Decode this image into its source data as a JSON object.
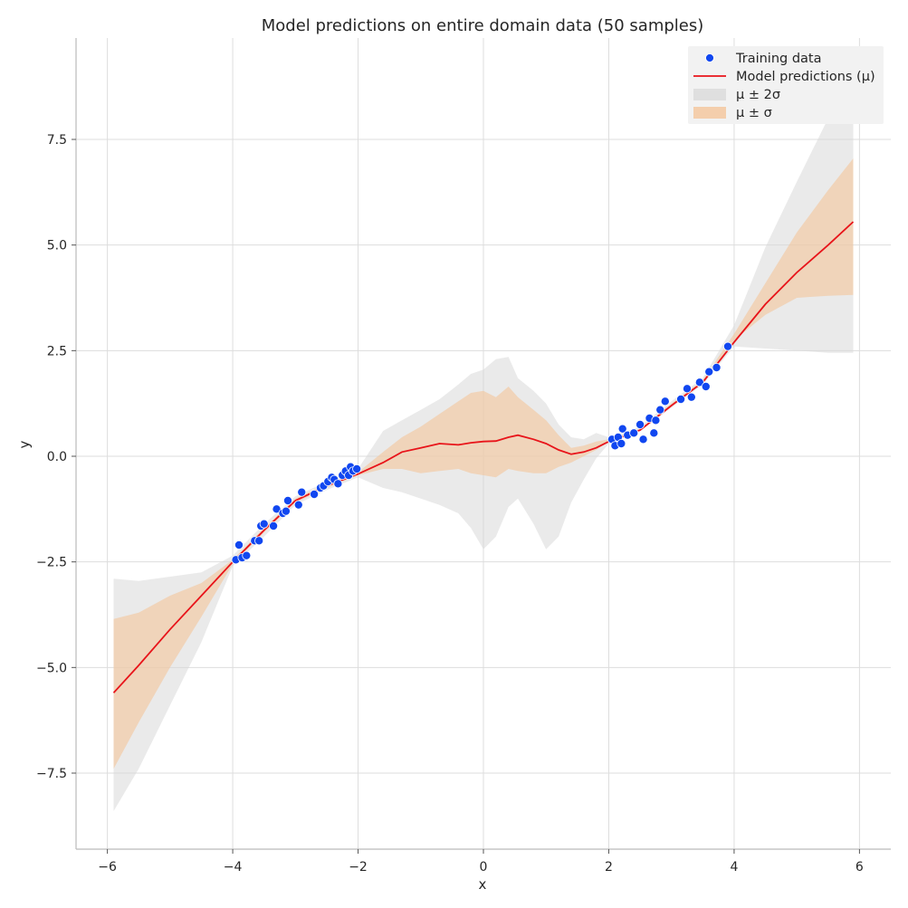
{
  "chart_data": {
    "type": "line",
    "title": "Model predictions on entire domain data (50 samples)",
    "xlabel": "x",
    "ylabel": "y",
    "xlim": [
      -6.5,
      6.5
    ],
    "ylim": [
      -9.3,
      9.9
    ],
    "grid": true,
    "legend_position": "top-right",
    "x_ticks": [
      {
        "value": -6,
        "label": "−6"
      },
      {
        "value": -4,
        "label": "−4"
      },
      {
        "value": -2,
        "label": "−2"
      },
      {
        "value": 0,
        "label": "0"
      },
      {
        "value": 2,
        "label": "2"
      },
      {
        "value": 4,
        "label": "4"
      },
      {
        "value": 6,
        "label": "6"
      }
    ],
    "y_ticks": [
      {
        "value": -7.5,
        "label": "−7.5"
      },
      {
        "value": -5.0,
        "label": "−5.0"
      },
      {
        "value": -2.5,
        "label": "−2.5"
      },
      {
        "value": 0.0,
        "label": "0.0"
      },
      {
        "value": 2.5,
        "label": "2.5"
      },
      {
        "value": 5.0,
        "label": "5.0"
      },
      {
        "value": 7.5,
        "label": "7.5"
      }
    ],
    "colors": {
      "training": "#1147f0",
      "prediction": "#e8141a",
      "band_2sigma": "#d9d9d9",
      "band_1sigma": "#f4c49a",
      "grid": "#dddddd",
      "legend_bg": "#f2f2f2"
    },
    "legend": [
      {
        "label": "Training data",
        "kind": "point"
      },
      {
        "label": "Model predictions (μ)",
        "kind": "line"
      },
      {
        "label": "μ ± 2σ",
        "kind": "band2"
      },
      {
        "label": "μ ± σ",
        "kind": "band1"
      }
    ],
    "prediction": {
      "x": [
        -5.9,
        -5.5,
        -5.0,
        -4.5,
        -4.0,
        -3.5,
        -3.0,
        -2.5,
        -2.0,
        -1.6,
        -1.3,
        -1.0,
        -0.7,
        -0.4,
        -0.2,
        0.0,
        0.2,
        0.4,
        0.55,
        0.8,
        1.0,
        1.2,
        1.4,
        1.6,
        1.8,
        2.0,
        2.2,
        2.5,
        3.0,
        3.5,
        4.0,
        4.5,
        5.0,
        5.5,
        5.9
      ],
      "mean": [
        -5.6,
        -4.95,
        -4.1,
        -3.3,
        -2.5,
        -1.75,
        -1.05,
        -0.7,
        -0.42,
        -0.15,
        0.1,
        0.2,
        0.3,
        0.27,
        0.32,
        0.35,
        0.36,
        0.45,
        0.5,
        0.4,
        0.3,
        0.15,
        0.05,
        0.1,
        0.2,
        0.35,
        0.45,
        0.62,
        1.2,
        1.75,
        2.7,
        3.6,
        4.35,
        5.0,
        5.55
      ],
      "sigma_lower": [
        -7.4,
        -6.3,
        -5.0,
        -3.8,
        -2.55,
        -1.8,
        -1.1,
        -0.75,
        -0.45,
        -0.3,
        -0.3,
        -0.4,
        -0.35,
        -0.3,
        -0.4,
        -0.45,
        -0.5,
        -0.3,
        -0.35,
        -0.4,
        -0.4,
        -0.25,
        -0.15,
        0.0,
        0.15,
        0.35,
        0.45,
        0.62,
        1.2,
        1.75,
        2.75,
        3.35,
        3.75,
        3.8,
        3.82
      ],
      "sigma_upper": [
        -3.85,
        -3.7,
        -3.3,
        -3.0,
        -2.45,
        -1.7,
        -1.0,
        -0.65,
        -0.38,
        0.1,
        0.45,
        0.7,
        1.0,
        1.3,
        1.5,
        1.55,
        1.4,
        1.65,
        1.4,
        1.1,
        0.85,
        0.5,
        0.2,
        0.25,
        0.35,
        0.4,
        0.5,
        0.65,
        1.25,
        1.8,
        2.9,
        4.1,
        5.3,
        6.3,
        7.05
      ],
      "two_sigma_lower": [
        -8.4,
        -7.4,
        -5.9,
        -4.4,
        -2.6,
        -1.9,
        -1.15,
        -0.8,
        -0.5,
        -0.75,
        -0.85,
        -1.0,
        -1.15,
        -1.35,
        -1.7,
        -2.2,
        -1.9,
        -1.2,
        -1.0,
        -1.6,
        -2.2,
        -1.9,
        -1.1,
        -0.55,
        -0.05,
        0.3,
        0.45,
        0.6,
        1.15,
        1.7,
        2.6,
        2.55,
        2.5,
        2.45,
        2.45
      ],
      "two_sigma_upper": [
        -2.9,
        -2.95,
        -2.85,
        -2.75,
        -2.35,
        -1.6,
        -0.95,
        -0.6,
        -0.3,
        0.6,
        0.85,
        1.1,
        1.35,
        1.7,
        1.95,
        2.05,
        2.3,
        2.35,
        1.85,
        1.55,
        1.25,
        0.75,
        0.45,
        0.4,
        0.55,
        0.45,
        0.55,
        0.7,
        1.3,
        1.85,
        3.1,
        4.95,
        6.5,
        8.0,
        9.2
      ]
    },
    "training": {
      "x": [
        -3.95,
        -3.9,
        -3.85,
        -3.78,
        -3.65,
        -3.58,
        -3.55,
        -3.5,
        -3.35,
        -3.3,
        -3.2,
        -3.15,
        -3.12,
        -2.95,
        -2.9,
        -2.7,
        -2.6,
        -2.55,
        -2.48,
        -2.42,
        -2.38,
        -2.32,
        -2.25,
        -2.2,
        -2.15,
        -2.12,
        -2.08,
        -2.02,
        2.05,
        2.1,
        2.15,
        2.2,
        2.22,
        2.3,
        2.4,
        2.5,
        2.55,
        2.65,
        2.72,
        2.75,
        2.82,
        2.9,
        3.15,
        3.25,
        3.32,
        3.45,
        3.55,
        3.6,
        3.72,
        3.9
      ],
      "y": [
        -2.45,
        -2.1,
        -2.4,
        -2.35,
        -2.0,
        -2.0,
        -1.65,
        -1.6,
        -1.65,
        -1.25,
        -1.35,
        -1.3,
        -1.05,
        -1.15,
        -0.85,
        -0.9,
        -0.75,
        -0.7,
        -0.6,
        -0.5,
        -0.55,
        -0.65,
        -0.45,
        -0.35,
        -0.45,
        -0.25,
        -0.35,
        -0.3,
        0.4,
        0.25,
        0.45,
        0.3,
        0.65,
        0.5,
        0.55,
        0.75,
        0.4,
        0.9,
        0.55,
        0.85,
        1.1,
        1.3,
        1.35,
        1.6,
        1.4,
        1.75,
        1.65,
        2.0,
        2.1,
        2.6
      ]
    }
  }
}
